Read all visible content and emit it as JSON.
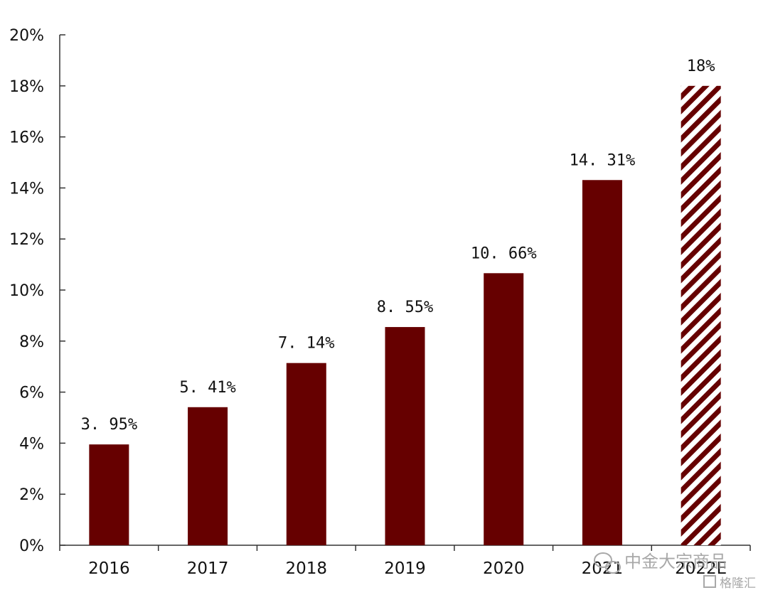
{
  "chart_data": {
    "type": "bar",
    "categories": [
      "2016",
      "2017",
      "2018",
      "2019",
      "2020",
      "2021",
      "2022E"
    ],
    "values": [
      3.95,
      5.41,
      7.14,
      8.55,
      10.66,
      14.31,
      18
    ],
    "data_labels": [
      "3. 95%",
      "5. 41%",
      "7. 14%",
      "8. 55%",
      "10. 66%",
      "14. 31%",
      "18%"
    ],
    "estimate_flags": [
      false,
      false,
      false,
      false,
      false,
      false,
      true
    ],
    "ylim": [
      0,
      20
    ],
    "yticks": [
      "0%",
      "2%",
      "4%",
      "6%",
      "8%",
      "10%",
      "12%",
      "14%",
      "16%",
      "18%",
      "20%"
    ],
    "title": "",
    "xlabel": "",
    "ylabel": "",
    "grid": false,
    "colors": {
      "bar": "#660000",
      "hatch_fg": "#660000",
      "hatch_bg": "#ffffff",
      "axis": "#333333"
    }
  },
  "watermark": {
    "main": "中金大宗商品",
    "sub": "格隆汇",
    "icon": "wechat-icon"
  }
}
